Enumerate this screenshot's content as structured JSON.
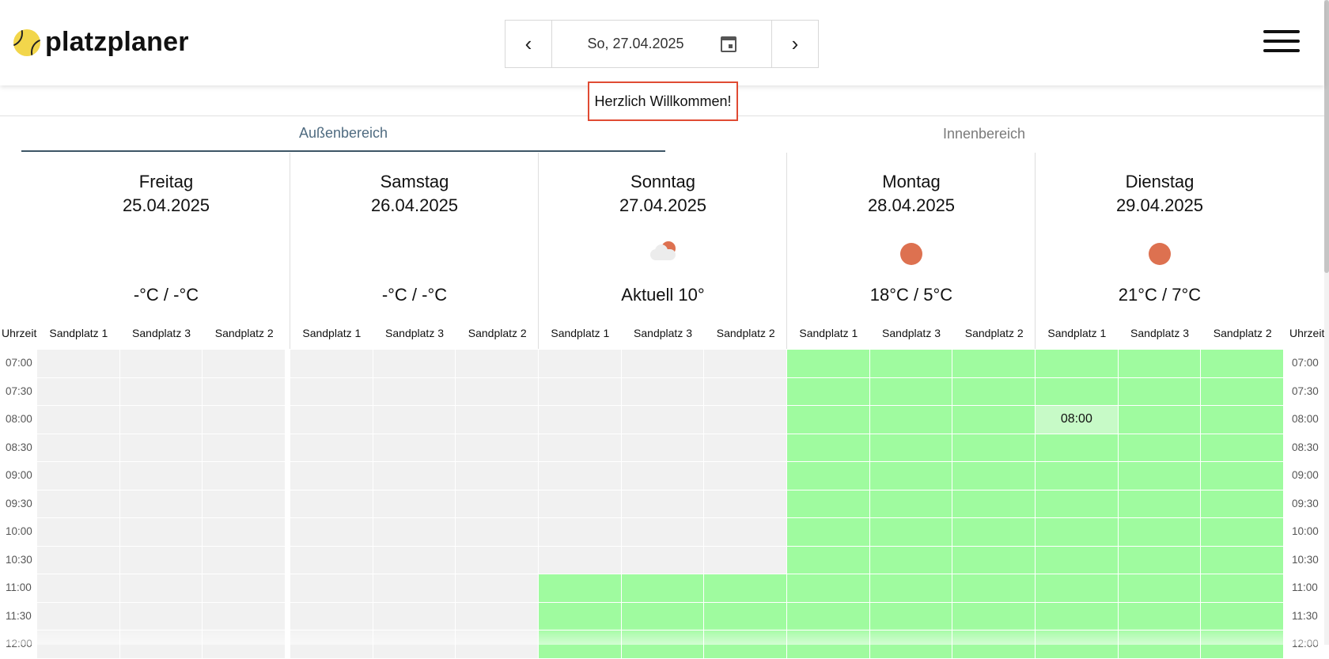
{
  "header": {
    "logo_text": "platzplaner",
    "current_date": "So, 27.04.2025",
    "prev_symbol": "‹",
    "next_symbol": "›"
  },
  "welcome": "Herzlich Willkommen!",
  "tabs": [
    {
      "label": "Außenbereich",
      "active": true
    },
    {
      "label": "Innenbereich",
      "active": false
    }
  ],
  "time_header": "Uhrzeit",
  "days": [
    {
      "name": "Freitag",
      "date": "25.04.2025",
      "weather": "none",
      "temp": "-°C / -°C"
    },
    {
      "name": "Samstag",
      "date": "26.04.2025",
      "weather": "none",
      "temp": "-°C / -°C"
    },
    {
      "name": "Sonntag",
      "date": "27.04.2025",
      "weather": "cloud-sun-icon",
      "temp": "Aktuell 10°"
    },
    {
      "name": "Montag",
      "date": "28.04.2025",
      "weather": "sun-icon",
      "temp": "18°C / 5°C"
    },
    {
      "name": "Dienstag",
      "date": "29.04.2025",
      "weather": "sun-icon",
      "temp": "21°C / 7°C"
    }
  ],
  "courts": [
    "Sandplatz 1",
    "Sandplatz 3",
    "Sandplatz 2"
  ],
  "times": [
    "07:00",
    "07:30",
    "08:00",
    "08:30",
    "09:00",
    "09:30",
    "10:00",
    "10:30",
    "11:00",
    "11:30",
    "12:00"
  ],
  "hover_slot": {
    "day": 4,
    "court": 0,
    "time": "08:00",
    "label": "08:00"
  },
  "colors": {
    "available": "#9ffb9f",
    "unavailable": "#f1f1f1",
    "hover": "#c7fac7",
    "accent": "#3d5566",
    "weather_sun": "#dd7150"
  }
}
